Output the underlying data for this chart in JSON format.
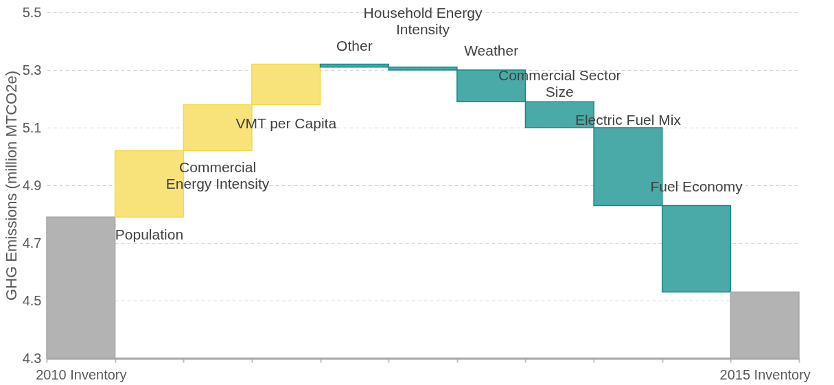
{
  "chart_data": {
    "type": "bar",
    "ylabel": "GHG Emissions (million MTCO2e)",
    "categories": [
      "2010 Inventory",
      null,
      null,
      null,
      null,
      null,
      null,
      null,
      null,
      null,
      "2015 Inventory"
    ],
    "base": [
      4.3,
      4.79,
      5.02,
      5.18,
      5.32,
      5.31,
      5.3,
      5.19,
      5.1,
      4.83,
      4.3
    ],
    "values": [
      0.49,
      0.23,
      0.16,
      0.14,
      -0.01,
      -0.01,
      -0.11,
      -0.09,
      -0.27,
      -0.3,
      0.23
    ],
    "colors": [
      "#b3b3b3",
      "#f8e37a",
      "#f8e37a",
      "#f8e37a",
      "#4aaaa8",
      "#4aaaa8",
      "#4aaaa8",
      "#4aaaa8",
      "#4aaaa8",
      "#4aaaa8",
      "#b3b3b3"
    ],
    "ylim": [
      4.3,
      5.5
    ],
    "yticks": [
      4.3,
      4.5,
      4.7,
      4.9,
      5.1,
      5.3,
      5.5
    ],
    "grid": "y",
    "annotations": [
      "Population",
      "Commercial\nEnergy Intensity",
      "VMT per Capita",
      "Other",
      "Household Energy\nIntensity",
      "Weather",
      "Commercial Sector\nSize",
      "Electric Fuel Mix",
      "Fuel Economy"
    ]
  }
}
